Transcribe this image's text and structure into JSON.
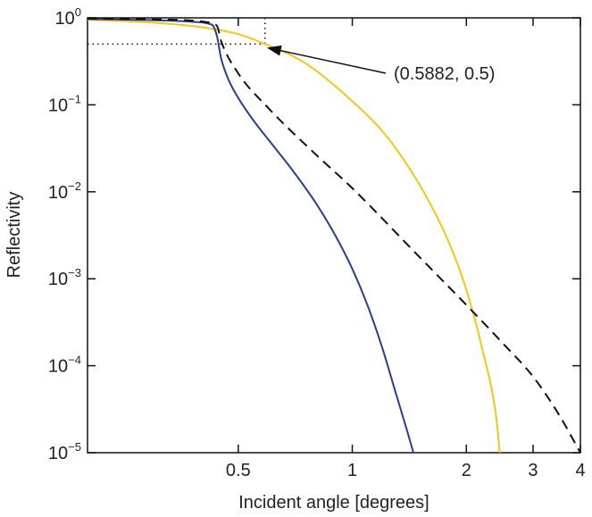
{
  "chart_data": {
    "type": "line",
    "xlabel": "Incident angle [degrees]",
    "ylabel": "Reflectivity",
    "x_scale": "log",
    "y_scale": "log",
    "xlim": [
      0.2,
      4
    ],
    "ylim": [
      1e-05,
      1
    ],
    "grid": false,
    "x_ticks": [
      {
        "value": 0.5,
        "label": "0.5"
      },
      {
        "value": 1,
        "label": "1"
      },
      {
        "value": 2,
        "label": "2"
      },
      {
        "value": 3,
        "label": "3"
      },
      {
        "value": 4,
        "label": "4"
      }
    ],
    "y_ticks": [
      {
        "value": 1,
        "base": "10",
        "exp": "0"
      },
      {
        "value": 0.1,
        "base": "10",
        "exp": "−1"
      },
      {
        "value": 0.01,
        "base": "10",
        "exp": "−2"
      },
      {
        "value": 0.001,
        "base": "10",
        "exp": "−3"
      },
      {
        "value": 0.0001,
        "base": "10",
        "exp": "−4"
      },
      {
        "value": 1e-05,
        "base": "10",
        "exp": "−5"
      }
    ],
    "series": [
      {
        "color": "#f5c518",
        "dash": "solid",
        "points": [
          [
            0.2,
            0.95
          ],
          [
            0.3,
            0.88
          ],
          [
            0.4,
            0.78
          ],
          [
            0.5,
            0.65
          ],
          [
            0.5882,
            0.5
          ],
          [
            0.7,
            0.36
          ],
          [
            0.8,
            0.25
          ],
          [
            1.0,
            0.11
          ],
          [
            1.2,
            0.05
          ],
          [
            1.4,
            0.02
          ],
          [
            1.6,
            0.0075
          ],
          [
            1.8,
            0.0026
          ],
          [
            2.0,
            0.00075
          ],
          [
            2.2,
            0.00016
          ],
          [
            2.4,
            2.5e-05
          ],
          [
            2.45,
            1e-05
          ]
        ]
      },
      {
        "color": "#2b3d8f",
        "dash": "solid",
        "points": [
          [
            0.2,
            0.97
          ],
          [
            0.3,
            0.94
          ],
          [
            0.38,
            0.9
          ],
          [
            0.42,
            0.85
          ],
          [
            0.43,
            0.8
          ],
          [
            0.44,
            0.6
          ],
          [
            0.45,
            0.35
          ],
          [
            0.47,
            0.2
          ],
          [
            0.5,
            0.12
          ],
          [
            0.55,
            0.065
          ],
          [
            0.6,
            0.04
          ],
          [
            0.7,
            0.017
          ],
          [
            0.8,
            0.0075
          ],
          [
            0.9,
            0.0032
          ],
          [
            1.0,
            0.0013
          ],
          [
            1.1,
            0.00048
          ],
          [
            1.2,
            0.00016
          ],
          [
            1.3,
            5e-05
          ],
          [
            1.4,
            1.7e-05
          ],
          [
            1.45,
            1e-05
          ]
        ]
      },
      {
        "color": "#111111",
        "dash": "dashed",
        "points": [
          [
            0.2,
            0.98
          ],
          [
            0.3,
            0.96
          ],
          [
            0.38,
            0.93
          ],
          [
            0.42,
            0.88
          ],
          [
            0.44,
            0.8
          ],
          [
            0.45,
            0.55
          ],
          [
            0.5,
            0.23
          ],
          [
            0.6,
            0.092
          ],
          [
            0.8,
            0.027
          ],
          [
            1.0,
            0.011
          ],
          [
            1.5,
            0.0018
          ],
          [
            2.0,
            0.0005
          ],
          [
            2.5,
            0.00018
          ],
          [
            3.0,
            7.5e-05
          ],
          [
            3.5,
            2.8e-05
          ],
          [
            4.0,
            1e-05
          ]
        ]
      }
    ],
    "reference_lines": {
      "point": [
        0.5882,
        0.5
      ],
      "style": "dotted"
    },
    "annotation": {
      "text": "(0.5882, 0.5)",
      "point": [
        0.5882,
        0.5
      ]
    }
  }
}
